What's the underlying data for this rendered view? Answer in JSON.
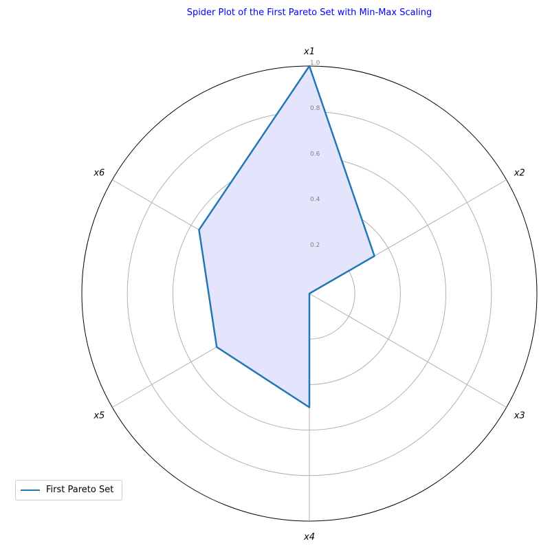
{
  "chart_data": {
    "type": "radar",
    "title": "Spider Plot of the First Pareto Set with Min-Max Scaling",
    "axes": [
      "x1",
      "x2",
      "x3",
      "x4",
      "x5",
      "x6"
    ],
    "radial_ticks": [
      "0.2",
      "0.4",
      "0.6",
      "0.8",
      "1.0"
    ],
    "rlim": [
      0,
      1
    ],
    "grid": true,
    "legend_position": "lower-left",
    "series": [
      {
        "name": "First Pareto Set",
        "values": [
          1.0,
          0.33,
          0.0,
          0.5,
          0.47,
          0.56
        ],
        "line_color": "#1f77b4",
        "fill_color": "#e4e4fd"
      }
    ]
  }
}
